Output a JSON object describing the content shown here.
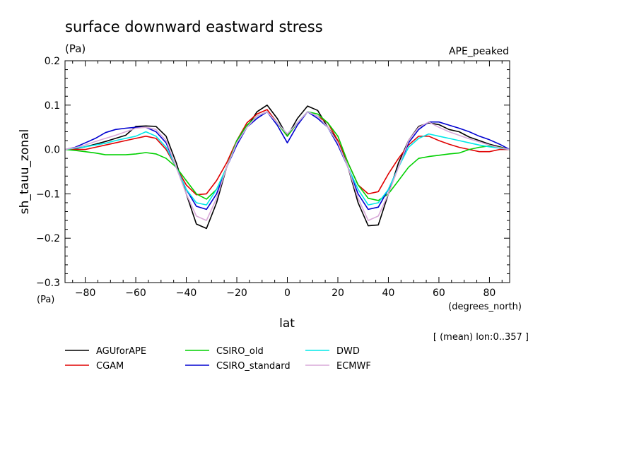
{
  "chart_data": {
    "type": "line",
    "title": "surface downward eastward stress",
    "units_label": "(Pa)",
    "experiment": "APE_peaked",
    "ylabel": "sh_tauu_zonal",
    "ylabel_units": "(Pa)",
    "xlabel": "lat",
    "xlabel_units": "(degrees_north)",
    "mean_note": "[ (mean) lon:0..357 ]",
    "xlim": [
      -88,
      88
    ],
    "ylim": [
      -0.3,
      0.2
    ],
    "x_ticks": [
      -80,
      -60,
      -40,
      -20,
      0,
      20,
      40,
      60,
      80
    ],
    "x_tick_labels": [
      "−80",
      "−60",
      "−40",
      "−20",
      "0",
      "20",
      "40",
      "60",
      "80"
    ],
    "y_ticks": [
      -0.3,
      -0.2,
      -0.1,
      0.0,
      0.1,
      0.2
    ],
    "y_tick_labels": [
      "−0.3",
      "−0.2",
      "−0.1",
      "0.0",
      "0.1",
      "0.2"
    ],
    "x": [
      -88,
      -84,
      -80,
      -76,
      -72,
      -68,
      -64,
      -60,
      -56,
      -52,
      -48,
      -44,
      -40,
      -36,
      -32,
      -28,
      -24,
      -20,
      -16,
      -12,
      -8,
      -4,
      0,
      4,
      8,
      12,
      16,
      20,
      24,
      28,
      32,
      36,
      40,
      44,
      48,
      52,
      56,
      60,
      64,
      68,
      72,
      76,
      80,
      84,
      88
    ],
    "series": [
      {
        "name": "AGUforAPE",
        "color": "#000000",
        "values": [
          0.0,
          0.002,
          0.006,
          0.012,
          0.018,
          0.025,
          0.032,
          0.052,
          0.053,
          0.052,
          0.03,
          -0.03,
          -0.1,
          -0.168,
          -0.178,
          -0.12,
          -0.04,
          0.02,
          0.05,
          0.085,
          0.1,
          0.07,
          0.03,
          0.07,
          0.098,
          0.088,
          0.05,
          0.02,
          -0.04,
          -0.12,
          -0.172,
          -0.17,
          -0.1,
          -0.03,
          0.02,
          0.052,
          0.06,
          0.056,
          0.045,
          0.04,
          0.028,
          0.02,
          0.012,
          0.006,
          0.0
        ]
      },
      {
        "name": "CGAM",
        "color": "#e00000",
        "values": [
          0.0,
          0.0,
          0.0,
          0.005,
          0.01,
          0.015,
          0.02,
          0.025,
          0.03,
          0.025,
          0.0,
          -0.04,
          -0.08,
          -0.102,
          -0.1,
          -0.07,
          -0.03,
          0.02,
          0.06,
          0.08,
          0.09,
          0.06,
          0.03,
          0.06,
          0.085,
          0.075,
          0.06,
          0.02,
          -0.03,
          -0.08,
          -0.1,
          -0.095,
          -0.055,
          -0.02,
          0.01,
          0.03,
          0.03,
          0.02,
          0.012,
          0.005,
          0.0,
          -0.005,
          -0.005,
          0.0,
          0.0
        ]
      },
      {
        "name": "CSIRO_old",
        "color": "#00d000",
        "values": [
          0.0,
          -0.002,
          -0.005,
          -0.008,
          -0.012,
          -0.012,
          -0.012,
          -0.01,
          -0.007,
          -0.01,
          -0.02,
          -0.04,
          -0.07,
          -0.1,
          -0.112,
          -0.09,
          -0.04,
          0.02,
          0.055,
          0.075,
          0.085,
          0.06,
          0.03,
          0.06,
          0.085,
          0.08,
          0.06,
          0.03,
          -0.03,
          -0.08,
          -0.11,
          -0.115,
          -0.1,
          -0.07,
          -0.04,
          -0.02,
          -0.016,
          -0.013,
          -0.01,
          -0.008,
          0.0,
          0.005,
          0.008,
          0.005,
          0.0
        ]
      },
      {
        "name": "CSIRO_standard",
        "color": "#0000d0",
        "values": [
          0.0,
          0.005,
          0.015,
          0.025,
          0.038,
          0.045,
          0.048,
          0.05,
          0.05,
          0.04,
          0.015,
          -0.04,
          -0.09,
          -0.128,
          -0.135,
          -0.1,
          -0.04,
          0.01,
          0.05,
          0.07,
          0.085,
          0.055,
          0.015,
          0.055,
          0.085,
          0.07,
          0.05,
          0.01,
          -0.04,
          -0.1,
          -0.135,
          -0.13,
          -0.09,
          -0.04,
          0.015,
          0.045,
          0.062,
          0.062,
          0.055,
          0.048,
          0.04,
          0.03,
          0.022,
          0.012,
          0.0
        ]
      },
      {
        "name": "DWD",
        "color": "#00e8e8",
        "values": [
          0.0,
          0.003,
          0.006,
          0.01,
          0.014,
          0.02,
          0.025,
          0.03,
          0.04,
          0.03,
          0.005,
          -0.04,
          -0.09,
          -0.12,
          -0.125,
          -0.09,
          -0.04,
          0.015,
          0.05,
          0.075,
          0.085,
          0.06,
          0.035,
          0.06,
          0.085,
          0.075,
          0.05,
          0.015,
          -0.04,
          -0.09,
          -0.125,
          -0.12,
          -0.09,
          -0.04,
          0.005,
          0.025,
          0.035,
          0.03,
          0.025,
          0.02,
          0.015,
          0.01,
          0.006,
          0.003,
          0.0
        ]
      },
      {
        "name": "ECMWF",
        "color": "#d8a8d8",
        "values": [
          0.0,
          0.004,
          0.01,
          0.018,
          0.025,
          0.032,
          0.04,
          0.048,
          0.05,
          0.045,
          0.02,
          -0.04,
          -0.1,
          -0.15,
          -0.16,
          -0.11,
          -0.04,
          0.015,
          0.05,
          0.075,
          0.085,
          0.06,
          0.035,
          0.06,
          0.085,
          0.075,
          0.05,
          0.015,
          -0.04,
          -0.11,
          -0.16,
          -0.15,
          -0.1,
          -0.04,
          0.02,
          0.05,
          0.062,
          0.05,
          0.04,
          0.032,
          0.024,
          0.017,
          0.01,
          0.004,
          0.0
        ]
      }
    ]
  }
}
